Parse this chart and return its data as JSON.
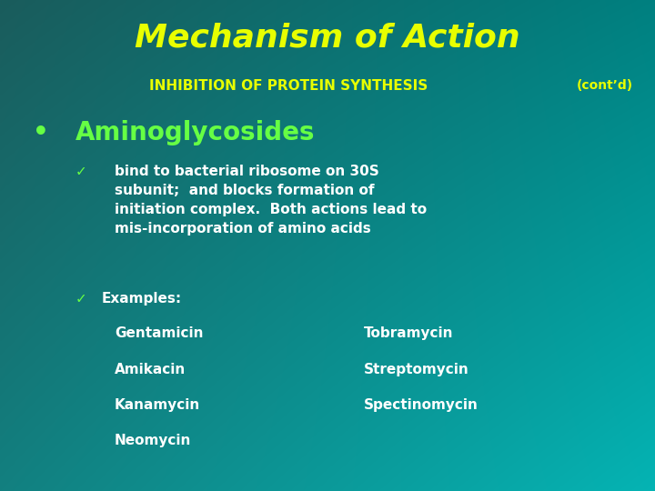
{
  "title": "Mechanism of Action",
  "subtitle": "INHIBITION OF PROTEIN SYNTHESIS",
  "contd": "(cont’d)",
  "bullet": "Aminoglycosides",
  "check1_text": "bind to bacterial ribosome on 30S\nsubunit;  and blocks formation of\ninitiation complex.  Both actions lead to\nmis-incorporation of amino acids",
  "check2_text": "Examples:",
  "left_col": [
    "Gentamicin",
    "Amikacin",
    "Kanamycin",
    "Neomycin"
  ],
  "right_col": [
    "Tobramycin",
    "Streptomycin",
    "Spectinomycin",
    ""
  ],
  "title_color": "#e8ff00",
  "subtitle_color": "#e8ff00",
  "contd_color": "#e8ff00",
  "bullet_color": "#66ff44",
  "check_color": "#66ff44",
  "body_color": "#ffffff",
  "title_fontsize": 26,
  "subtitle_fontsize": 11,
  "contd_fontsize": 10,
  "bullet_fontsize": 20,
  "check_fontsize": 11,
  "body_fontsize": 11
}
